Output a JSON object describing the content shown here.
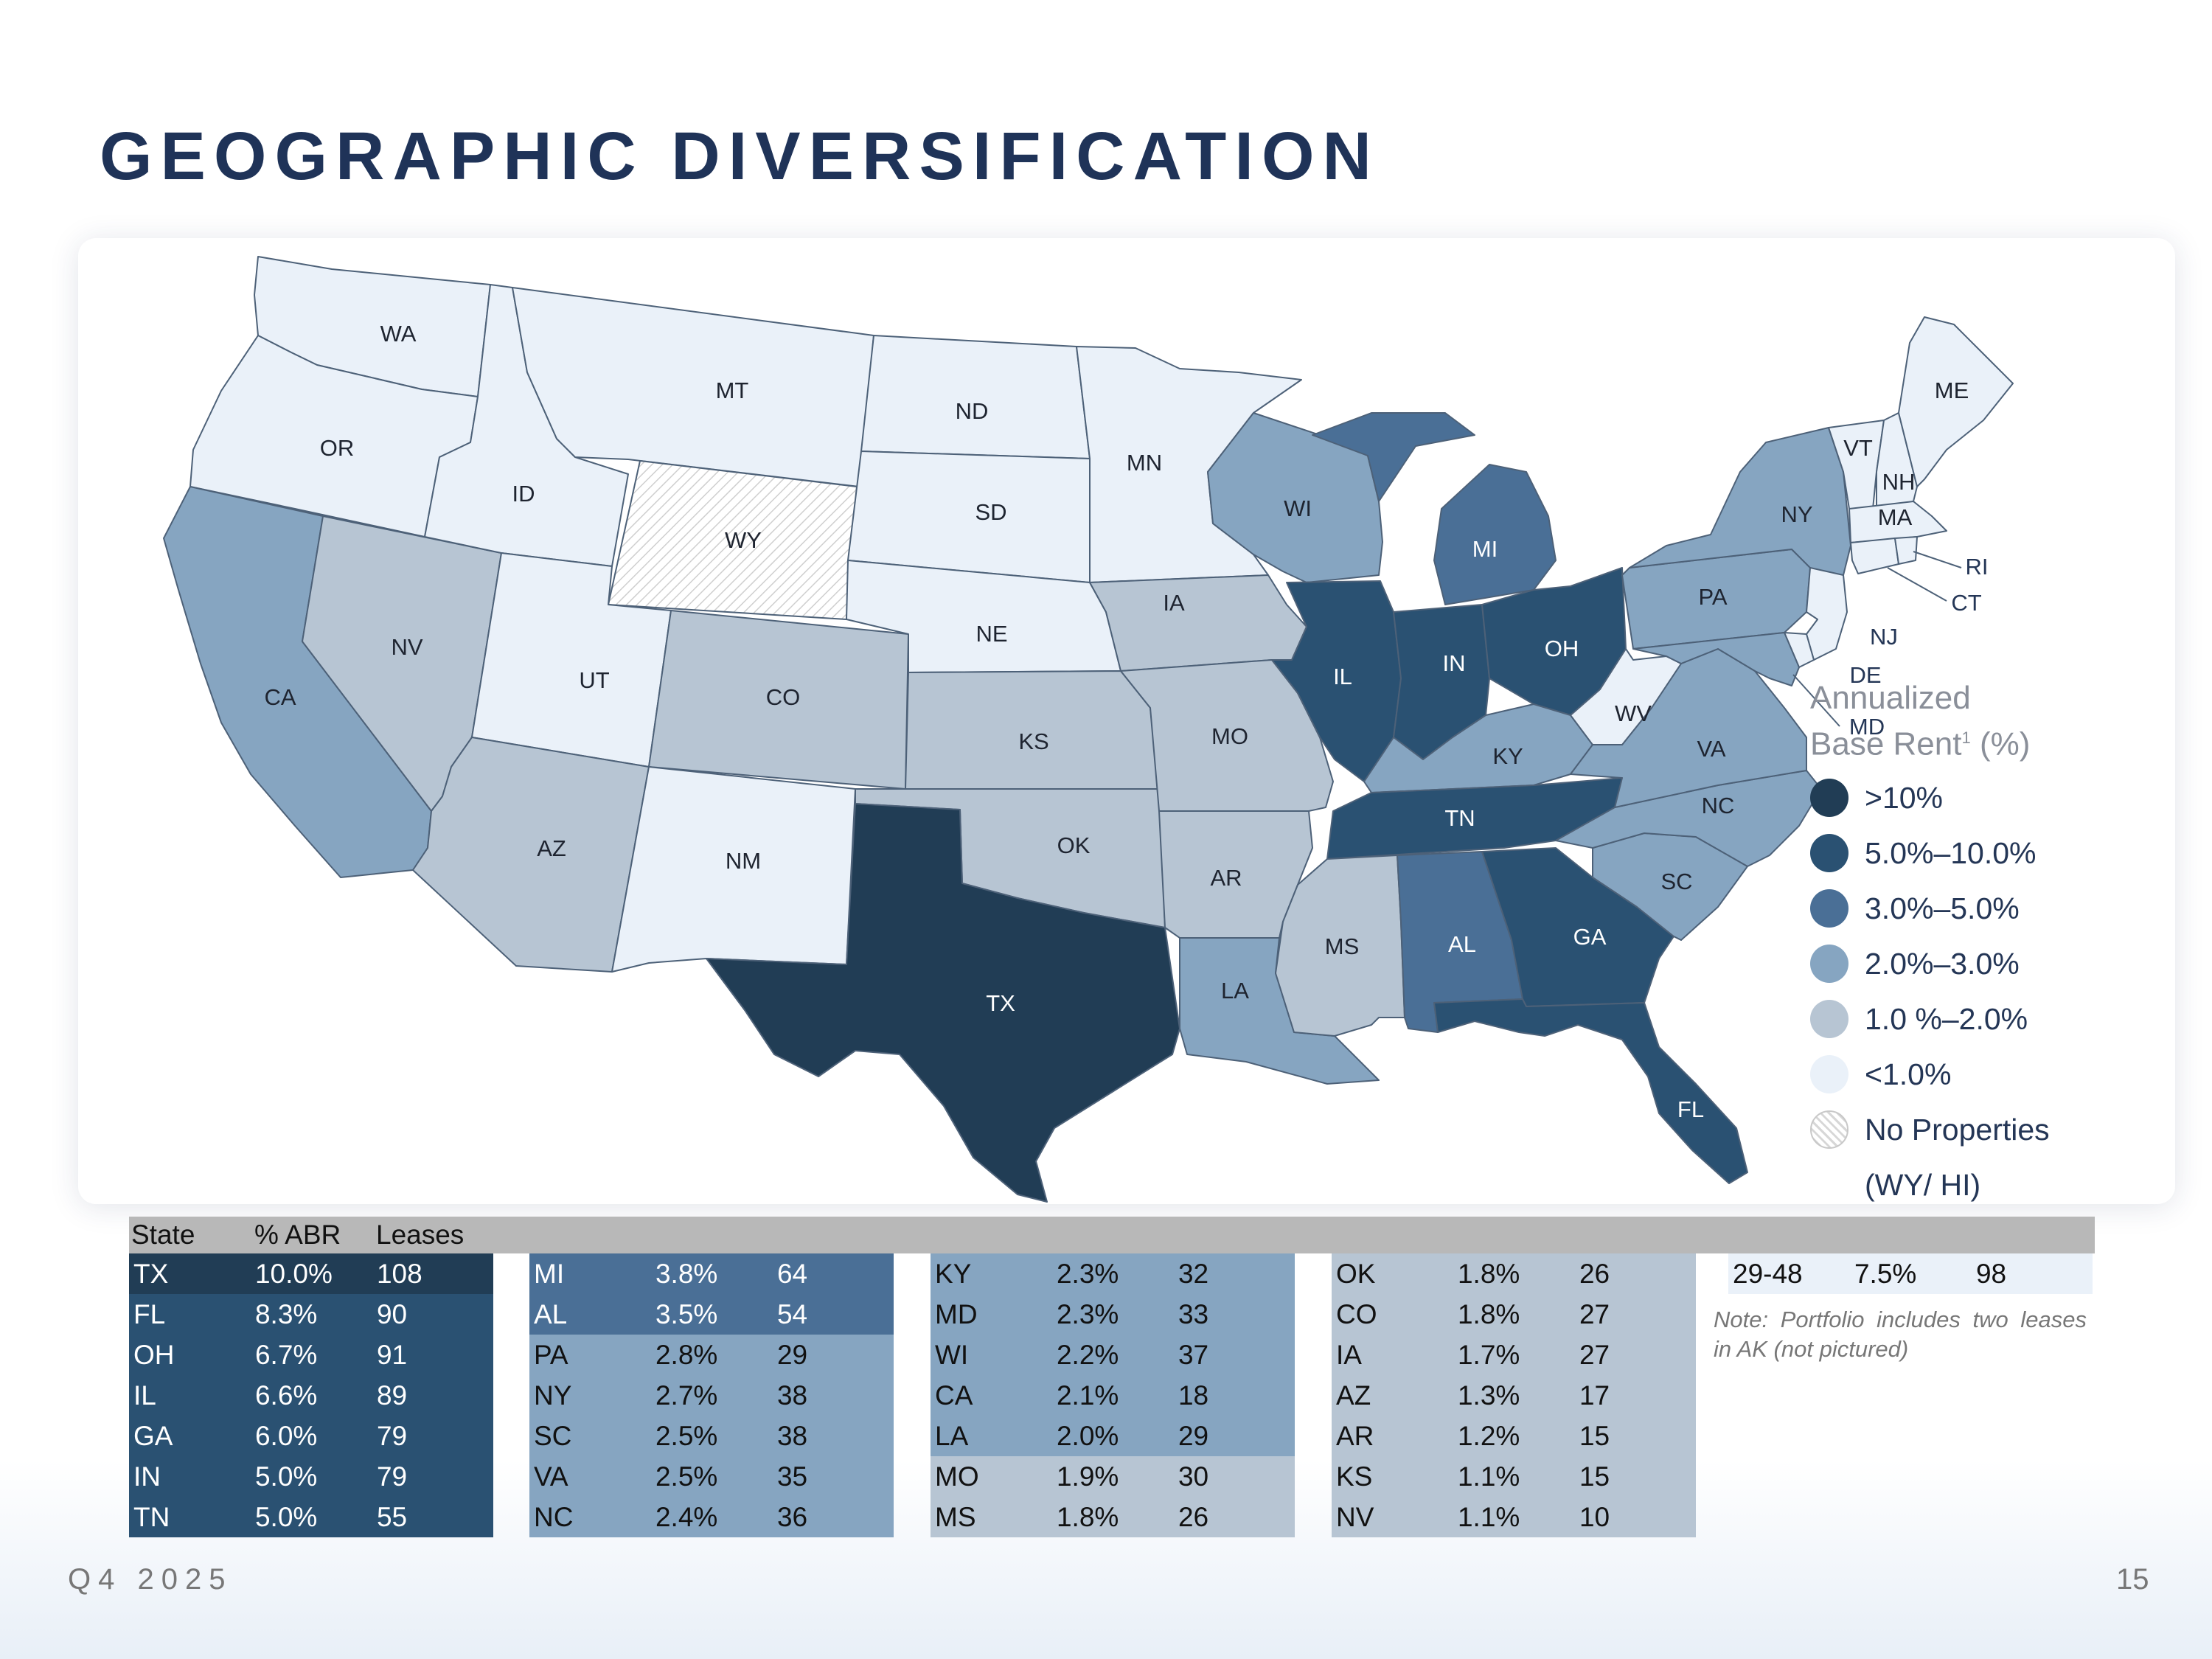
{
  "title": "GEOGRAPHIC DIVERSIFICATION",
  "colors": {
    "gt10": "#213d55",
    "5to10": "#2a5172",
    "3to5": "#4a6f96",
    "2to3": "#86a5c1",
    "1to2": "#b7c5d3",
    "lt1": "#eaf1f9",
    "none": "#f2f2f2"
  },
  "states": [
    {
      "abbr": "WA",
      "tier": "lt1"
    },
    {
      "abbr": "OR",
      "tier": "lt1"
    },
    {
      "abbr": "CA",
      "tier": "2to3"
    },
    {
      "abbr": "NV",
      "tier": "1to2"
    },
    {
      "abbr": "ID",
      "tier": "lt1"
    },
    {
      "abbr": "MT",
      "tier": "lt1"
    },
    {
      "abbr": "WY",
      "tier": "none"
    },
    {
      "abbr": "UT",
      "tier": "lt1"
    },
    {
      "abbr": "AZ",
      "tier": "1to2"
    },
    {
      "abbr": "CO",
      "tier": "1to2"
    },
    {
      "abbr": "NM",
      "tier": "lt1"
    },
    {
      "abbr": "ND",
      "tier": "lt1"
    },
    {
      "abbr": "SD",
      "tier": "lt1"
    },
    {
      "abbr": "NE",
      "tier": "lt1"
    },
    {
      "abbr": "KS",
      "tier": "1to2"
    },
    {
      "abbr": "OK",
      "tier": "1to2"
    },
    {
      "abbr": "TX",
      "tier": "gt10"
    },
    {
      "abbr": "MN",
      "tier": "lt1"
    },
    {
      "abbr": "IA",
      "tier": "1to2"
    },
    {
      "abbr": "MO",
      "tier": "1to2"
    },
    {
      "abbr": "AR",
      "tier": "1to2"
    },
    {
      "abbr": "LA",
      "tier": "2to3"
    },
    {
      "abbr": "WI",
      "tier": "2to3"
    },
    {
      "abbr": "IL",
      "tier": "5to10"
    },
    {
      "abbr": "MI",
      "tier": "3to5"
    },
    {
      "abbr": "IN",
      "tier": "5to10"
    },
    {
      "abbr": "OH",
      "tier": "5to10"
    },
    {
      "abbr": "KY",
      "tier": "2to3"
    },
    {
      "abbr": "TN",
      "tier": "5to10"
    },
    {
      "abbr": "MS",
      "tier": "1to2"
    },
    {
      "abbr": "AL",
      "tier": "3to5"
    },
    {
      "abbr": "GA",
      "tier": "5to10"
    },
    {
      "abbr": "FL",
      "tier": "5to10"
    },
    {
      "abbr": "SC",
      "tier": "2to3"
    },
    {
      "abbr": "NC",
      "tier": "2to3"
    },
    {
      "abbr": "VA",
      "tier": "2to3"
    },
    {
      "abbr": "WV",
      "tier": "lt1"
    },
    {
      "abbr": "PA",
      "tier": "2to3"
    },
    {
      "abbr": "NY",
      "tier": "2to3"
    },
    {
      "abbr": "VT",
      "tier": "lt1"
    },
    {
      "abbr": "NH",
      "tier": "lt1"
    },
    {
      "abbr": "ME",
      "tier": "lt1"
    },
    {
      "abbr": "MA",
      "tier": "lt1"
    },
    {
      "abbr": "RI",
      "tier": "lt1"
    },
    {
      "abbr": "CT",
      "tier": "lt1"
    },
    {
      "abbr": "NJ",
      "tier": "lt1"
    },
    {
      "abbr": "DE",
      "tier": "lt1"
    },
    {
      "abbr": "MD",
      "tier": "2to3"
    }
  ],
  "legend": {
    "title_line1": "Annualized",
    "title_line2": "Base Rent",
    "title_sup": "1",
    "title_suffix": " (%)",
    "items": [
      {
        "label": ">10%",
        "tier": "gt10"
      },
      {
        "label": "5.0%–10.0%",
        "tier": "5to10"
      },
      {
        "label": "3.0%–5.0%",
        "tier": "3to5"
      },
      {
        "label": "2.0%–3.0%",
        "tier": "2to3"
      },
      {
        "label": "1.0 %–2.0%",
        "tier": "1to2"
      },
      {
        "label": "<1.0%",
        "tier": "lt1"
      },
      {
        "label": "No Properties",
        "tier": "none"
      }
    ],
    "no_props_sub": "(WY/ HI)"
  },
  "table": {
    "headers": [
      "State",
      "% ABR",
      "Leases"
    ],
    "columns": [
      {
        "rows": [
          {
            "state": "TX",
            "abr": "10.0%",
            "leases": "108",
            "tier": "gt10"
          },
          {
            "state": "FL",
            "abr": "8.3%",
            "leases": "90",
            "tier": "5to10"
          },
          {
            "state": "OH",
            "abr": "6.7%",
            "leases": "91",
            "tier": "5to10"
          },
          {
            "state": "IL",
            "abr": "6.6%",
            "leases": "89",
            "tier": "5to10"
          },
          {
            "state": "GA",
            "abr": "6.0%",
            "leases": "79",
            "tier": "5to10"
          },
          {
            "state": "IN",
            "abr": "5.0%",
            "leases": "79",
            "tier": "5to10"
          },
          {
            "state": "TN",
            "abr": "5.0%",
            "leases": "55",
            "tier": "5to10"
          }
        ]
      },
      {
        "rows": [
          {
            "state": "MI",
            "abr": "3.8%",
            "leases": "64",
            "tier": "3to5"
          },
          {
            "state": "AL",
            "abr": "3.5%",
            "leases": "54",
            "tier": "3to5"
          },
          {
            "state": "PA",
            "abr": "2.8%",
            "leases": "29",
            "tier": "2to3"
          },
          {
            "state": "NY",
            "abr": "2.7%",
            "leases": "38",
            "tier": "2to3"
          },
          {
            "state": "SC",
            "abr": "2.5%",
            "leases": "38",
            "tier": "2to3"
          },
          {
            "state": "VA",
            "abr": "2.5%",
            "leases": "35",
            "tier": "2to3"
          },
          {
            "state": "NC",
            "abr": "2.4%",
            "leases": "36",
            "tier": "2to3"
          }
        ]
      },
      {
        "rows": [
          {
            "state": "KY",
            "abr": "2.3%",
            "leases": "32",
            "tier": "2to3"
          },
          {
            "state": "MD",
            "abr": "2.3%",
            "leases": "33",
            "tier": "2to3"
          },
          {
            "state": "WI",
            "abr": "2.2%",
            "leases": "37",
            "tier": "2to3"
          },
          {
            "state": "CA",
            "abr": "2.1%",
            "leases": "18",
            "tier": "2to3"
          },
          {
            "state": "LA",
            "abr": "2.0%",
            "leases": "29",
            "tier": "2to3"
          },
          {
            "state": "MO",
            "abr": "1.9%",
            "leases": "30",
            "tier": "1to2"
          },
          {
            "state": "MS",
            "abr": "1.8%",
            "leases": "26",
            "tier": "1to2"
          }
        ]
      },
      {
        "rows": [
          {
            "state": "OK",
            "abr": "1.8%",
            "leases": "26",
            "tier": "1to2"
          },
          {
            "state": "CO",
            "abr": "1.8%",
            "leases": "27",
            "tier": "1to2"
          },
          {
            "state": "IA",
            "abr": "1.7%",
            "leases": "27",
            "tier": "1to2"
          },
          {
            "state": "AZ",
            "abr": "1.3%",
            "leases": "17",
            "tier": "1to2"
          },
          {
            "state": "AR",
            "abr": "1.2%",
            "leases": "15",
            "tier": "1to2"
          },
          {
            "state": "KS",
            "abr": "1.1%",
            "leases": "15",
            "tier": "1to2"
          },
          {
            "state": "NV",
            "abr": "1.1%",
            "leases": "10",
            "tier": "1to2"
          }
        ]
      }
    ],
    "summary": {
      "state": "29-48",
      "abr": "7.5%",
      "leases": "98",
      "tier": "lt1"
    }
  },
  "note": "Note: Portfolio includes two leases in AK (not pictured)",
  "footer": {
    "period": "Q4 2025",
    "page": "15"
  }
}
